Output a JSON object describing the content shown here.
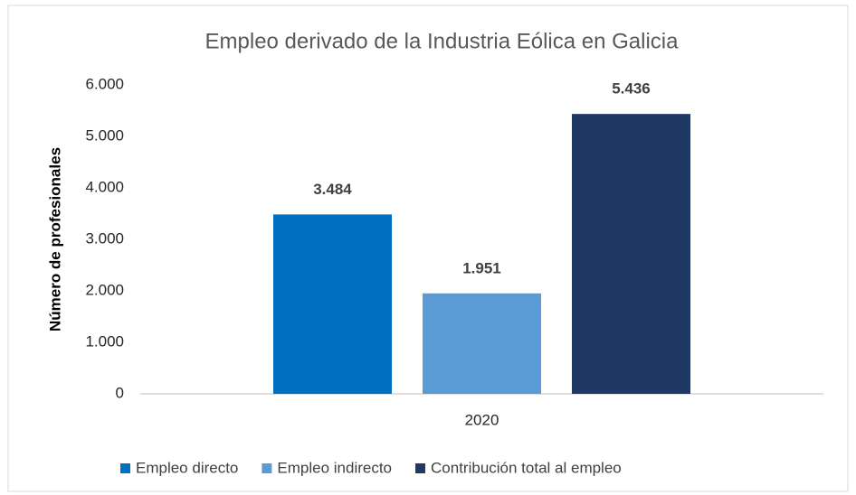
{
  "chart_data": {
    "type": "bar",
    "title": "Empleo derivado de la Industria Eólica en Galicia",
    "y_label": "Número de profesionales",
    "categories": [
      "2020"
    ],
    "series": [
      {
        "name": "Empleo directo",
        "color": "#0070c0",
        "values": [
          3484
        ],
        "value_labels": [
          "3.484"
        ]
      },
      {
        "name": "Empleo indirecto",
        "color": "#5b9bd5",
        "values": [
          1951
        ],
        "value_labels": [
          "1.951"
        ]
      },
      {
        "name": "Contribución total al empleo",
        "color": "#203864",
        "values": [
          5436
        ],
        "value_labels": [
          "5.436"
        ]
      }
    ],
    "ylim": [
      0,
      6000
    ],
    "yticks": [
      0,
      {
        "value": 1000,
        "label": "1.000"
      },
      {
        "value": 2000,
        "label": "2.000"
      },
      {
        "value": 3000,
        "label": "3.000"
      },
      {
        "value": 4000,
        "label": "4.000"
      },
      {
        "value": 5000,
        "label": "5.000"
      },
      {
        "value": 6000,
        "label": "6.000"
      }
    ],
    "grid": false
  }
}
